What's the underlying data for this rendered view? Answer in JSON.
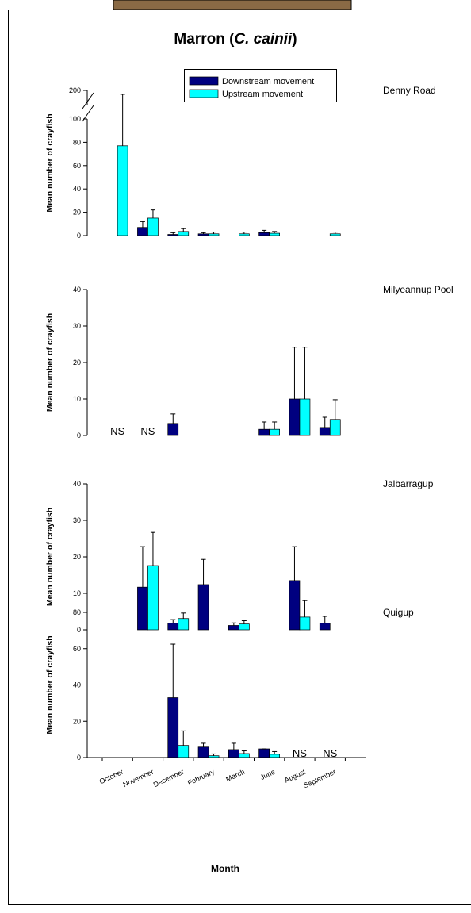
{
  "title": [
    "Marron (",
    "C. cainii",
    ")"
  ],
  "title_italic": [
    false,
    true,
    false
  ],
  "chart_data": [
    {
      "type": "bar",
      "site": "Denny Road",
      "ylabel": "Mean number of crayfish",
      "ylim": [
        0,
        200
      ],
      "yticks": [
        0,
        20,
        40,
        60,
        80,
        100,
        200
      ],
      "axis_break": 100,
      "legend": "top",
      "series": [
        {
          "name": "Downstream movement",
          "color": "#000080",
          "values": [
            null,
            7,
            1,
            1.5,
            null,
            2.5,
            null,
            null
          ],
          "errors": [
            null,
            5,
            1.5,
            1,
            null,
            2,
            null,
            null
          ]
        },
        {
          "name": "Upstream movement",
          "color": "#00ffff",
          "values": [
            77,
            15,
            3.5,
            1.5,
            1.5,
            2,
            null,
            1.5
          ],
          "errors": [
            97,
            7,
            2.5,
            1.5,
            1.5,
            1.5,
            null,
            1.5
          ]
        }
      ]
    },
    {
      "type": "bar",
      "site": "Milyeannup Pool",
      "ylabel": "Mean number of crayfish",
      "ylim": [
        0,
        40
      ],
      "yticks": [
        0,
        10,
        20,
        30,
        40
      ],
      "annotations": [
        "NS",
        "NS",
        null,
        null,
        null,
        null,
        null,
        null
      ],
      "series": [
        {
          "color": "#000080",
          "values": [
            null,
            null,
            3.3,
            null,
            null,
            1.7,
            10,
            2.2
          ],
          "errors": [
            null,
            null,
            2.6,
            null,
            null,
            2,
            14.2,
            2.8
          ]
        },
        {
          "color": "#00ffff",
          "values": [
            null,
            null,
            null,
            null,
            null,
            1.7,
            10,
            4.4
          ],
          "errors": [
            null,
            null,
            null,
            null,
            null,
            2,
            14.2,
            5.4
          ]
        }
      ]
    },
    {
      "type": "bar",
      "site": "Jalbarragup",
      "ylabel": "Mean number of crayfish",
      "ylim": [
        0,
        40
      ],
      "yticks": [
        0,
        10,
        20,
        30,
        40
      ],
      "series": [
        {
          "color": "#000080",
          "values": [
            null,
            11.7,
            1.8,
            12.4,
            1.2,
            null,
            13.5,
            1.8
          ],
          "errors": [
            null,
            11.1,
            1,
            6.9,
            0.7,
            null,
            9.3,
            1.9
          ]
        },
        {
          "color": "#00ffff",
          "values": [
            null,
            17.6,
            3.1,
            null,
            1.6,
            null,
            3.5,
            null
          ],
          "errors": [
            null,
            9.1,
            1.5,
            null,
            0.9,
            null,
            4.5,
            null
          ]
        }
      ]
    },
    {
      "type": "bar",
      "site": "Quigup",
      "ylabel": "Mean number of crayfish",
      "xlabel": "Month",
      "categories": [
        "October",
        "November",
        "December",
        "February",
        "March",
        "June",
        "August",
        "September"
      ],
      "ylim": [
        0,
        80
      ],
      "yticks": [
        0,
        20,
        40,
        60,
        80
      ],
      "annotations": [
        null,
        null,
        null,
        null,
        null,
        null,
        "NS",
        "NS"
      ],
      "series": [
        {
          "color": "#000080",
          "values": [
            null,
            null,
            33,
            5.8,
            4.4,
            4.8,
            null,
            null
          ],
          "errors": [
            null,
            null,
            29.5,
            2.1,
            3.5,
            0,
            null,
            null
          ]
        },
        {
          "color": "#00ffff",
          "values": [
            null,
            null,
            6.7,
            1,
            2.2,
            1.8,
            null,
            null
          ],
          "errors": [
            null,
            null,
            8,
            1,
            1.5,
            1.5,
            null,
            null
          ]
        }
      ]
    }
  ]
}
